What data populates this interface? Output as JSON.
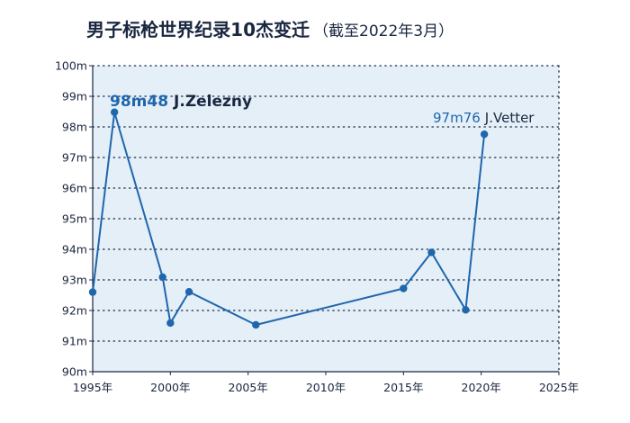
{
  "colors": {
    "line": "#1f66ad",
    "plot_bg": "#e4eff8",
    "grid": "#1a2740",
    "axis": "#1a2740",
    "text": "#1a2740"
  },
  "chart_data": {
    "type": "line",
    "title": "男子标枪世界纪录10杰变迁",
    "subtitle": "（截至2022年3月）",
    "xlabel": "",
    "ylabel": "",
    "xlim": [
      1995,
      2025
    ],
    "ylim": [
      90,
      100
    ],
    "x_ticks": [
      {
        "value": 1995,
        "label": "1995年"
      },
      {
        "value": 2000,
        "label": "2000年"
      },
      {
        "value": 2005,
        "label": "2005年"
      },
      {
        "value": 2010,
        "label": "2010年"
      },
      {
        "value": 2015,
        "label": "2015年"
      },
      {
        "value": 2020,
        "label": "2020年"
      },
      {
        "value": 2025,
        "label": "2025年"
      }
    ],
    "y_ticks": [
      {
        "value": 90,
        "label": "90m"
      },
      {
        "value": 91,
        "label": "91m"
      },
      {
        "value": 92,
        "label": "92m"
      },
      {
        "value": 93,
        "label": "93m"
      },
      {
        "value": 94,
        "label": "94m"
      },
      {
        "value": 95,
        "label": "95m"
      },
      {
        "value": 96,
        "label": "96m"
      },
      {
        "value": 97,
        "label": "97m"
      },
      {
        "value": 98,
        "label": "98m"
      },
      {
        "value": 99,
        "label": "99m"
      },
      {
        "value": 100,
        "label": "100m"
      }
    ],
    "grid": true,
    "series": [
      {
        "points": [
          {
            "x": 1995.0,
            "y": 92.6
          },
          {
            "x": 1996.4,
            "y": 98.48
          },
          {
            "x": 1999.5,
            "y": 93.09
          },
          {
            "x": 2000.0,
            "y": 91.59
          },
          {
            "x": 2001.2,
            "y": 92.61
          },
          {
            "x": 2005.5,
            "y": 91.53
          },
          {
            "x": 2015.0,
            "y": 92.72
          },
          {
            "x": 2016.8,
            "y": 93.9
          },
          {
            "x": 2019.0,
            "y": 92.02
          },
          {
            "x": 2020.2,
            "y": 97.76
          }
        ]
      }
    ],
    "annotations": [
      {
        "value_text": "98m48",
        "name_text": "J.Zelezny"
      },
      {
        "value_text": "97m76",
        "name_text": "J.Vetter"
      }
    ]
  }
}
